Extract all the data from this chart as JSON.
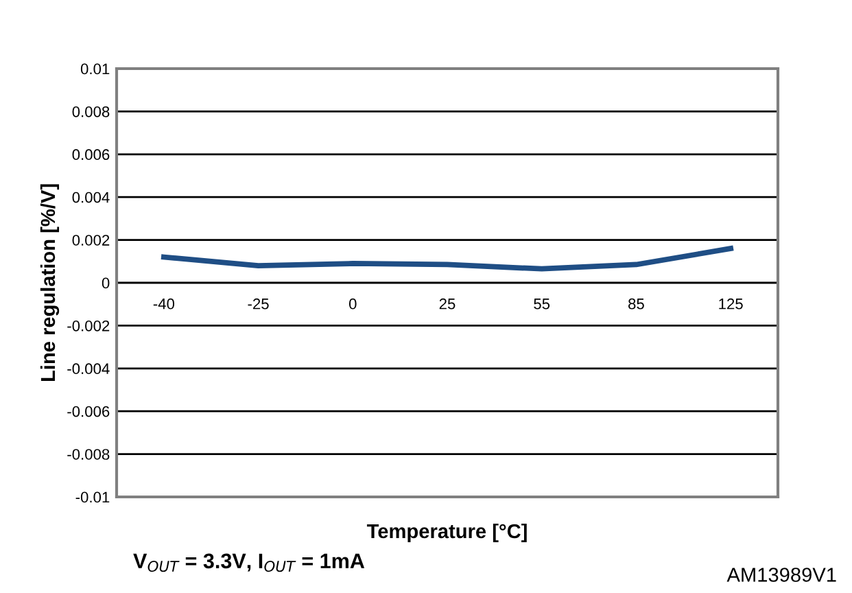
{
  "chart_data": {
    "type": "line",
    "xlabel": "Temperature [°C]",
    "ylabel": "Line regulation [%/V]",
    "categories": [
      "-40",
      "-25",
      "0",
      "25",
      "55",
      "85",
      "125"
    ],
    "series": [
      {
        "color": "#1f4e85",
        "values": [
          0.0012,
          0.0008,
          0.0009,
          0.00085,
          0.00065,
          0.00085,
          0.0016
        ]
      }
    ],
    "ylim": [
      -0.01,
      0.01
    ],
    "yticks": [
      -0.01,
      -0.008,
      -0.006,
      -0.004,
      -0.002,
      0,
      0.002,
      0.004,
      0.006,
      0.008,
      0.01
    ],
    "grid": "y",
    "marker": "none",
    "line_style": "solid",
    "annotations": [
      "V$_{OUT}$ = 3.3V, I$_{OUT}$ = 1mA",
      "AM13989V1"
    ]
  }
}
